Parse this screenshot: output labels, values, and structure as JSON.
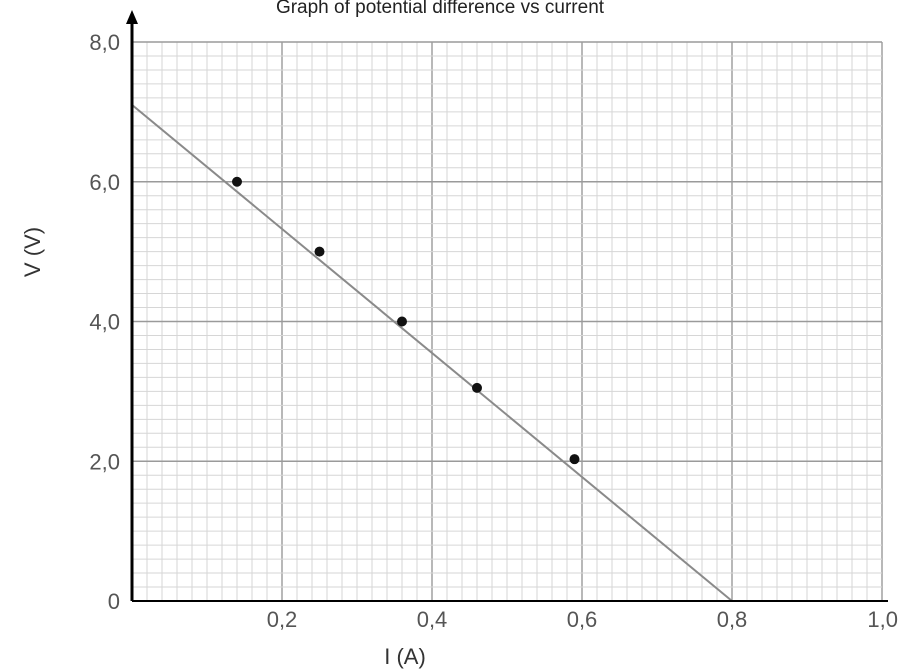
{
  "chart_data": {
    "type": "scatter",
    "title": "Graph of potential difference vs current",
    "xlabel": "I (A)",
    "ylabel": "V (V)",
    "xlim": [
      0,
      1.0
    ],
    "ylim": [
      0,
      8.0
    ],
    "x_ticks": [
      {
        "value": 0.2,
        "label": "0,2"
      },
      {
        "value": 0.4,
        "label": "0,4"
      },
      {
        "value": 0.6,
        "label": "0,6"
      },
      {
        "value": 0.8,
        "label": "0,8"
      },
      {
        "value": 1.0,
        "label": "1,0"
      }
    ],
    "y_ticks": [
      {
        "value": 0,
        "label": "0"
      },
      {
        "value": 2.0,
        "label": "2,0"
      },
      {
        "value": 4.0,
        "label": "4,0"
      },
      {
        "value": 6.0,
        "label": "6,0"
      },
      {
        "value": 8.0,
        "label": "8,0"
      }
    ],
    "grid": true,
    "points": [
      {
        "x": 0.14,
        "y": 6.0
      },
      {
        "x": 0.25,
        "y": 5.0
      },
      {
        "x": 0.36,
        "y": 4.0
      },
      {
        "x": 0.46,
        "y": 3.05
      },
      {
        "x": 0.59,
        "y": 2.03
      }
    ],
    "fit_line": {
      "x": [
        0.0,
        0.8
      ],
      "y": [
        7.1,
        0.0
      ]
    },
    "colors": {
      "grid_minor": "#d6d6d6",
      "grid_major": "#9a9a9a",
      "axis": "#000000",
      "line": "#8a8a8a",
      "point": "#111111"
    }
  }
}
